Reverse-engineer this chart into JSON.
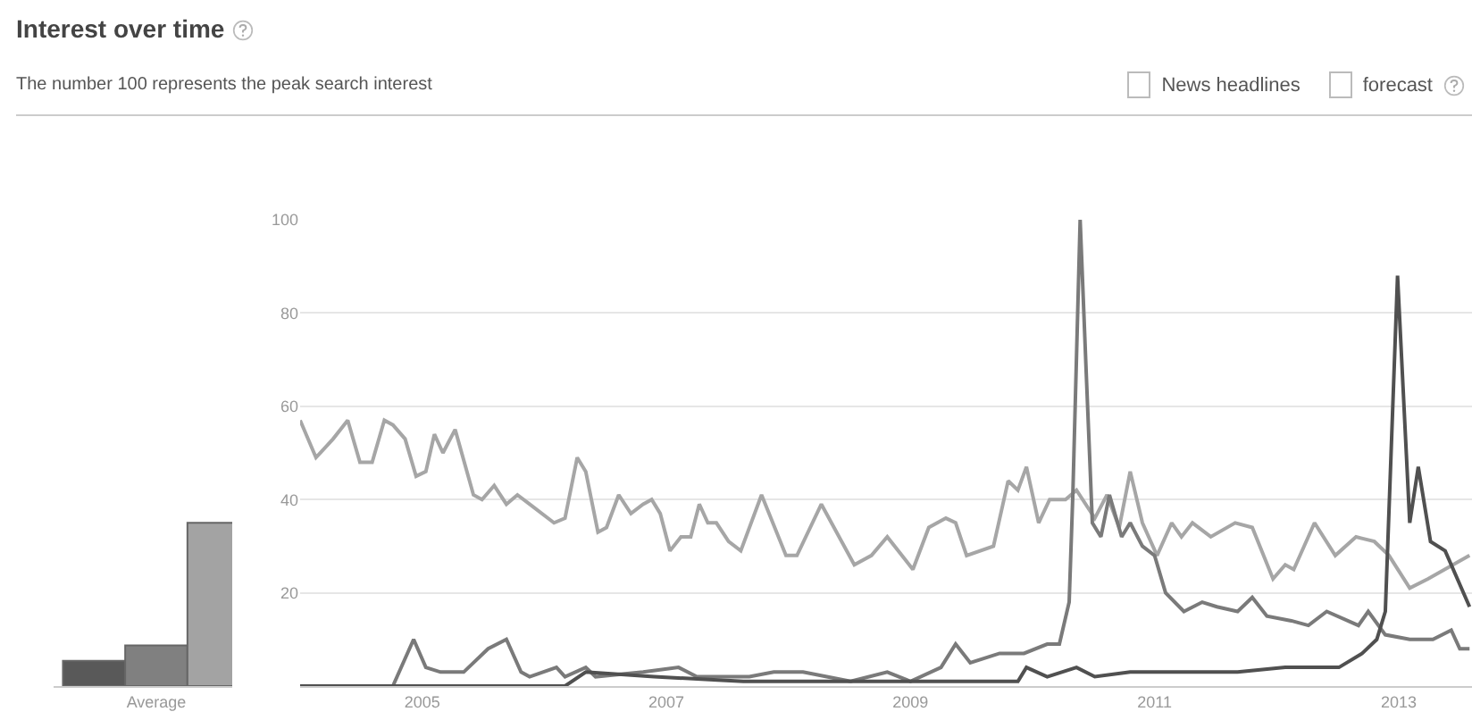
{
  "chart_data": [
    {
      "type": "bar",
      "title": "Interest over time",
      "subtitle": "The number 100 represents the peak search interest",
      "categories": [
        null,
        "Average",
        null
      ],
      "ylim": [
        0,
        100
      ],
      "tick_labels": "x",
      "grid": false,
      "values": [
        5.4,
        8.7,
        35
      ],
      "colors": [
        "#595959",
        "#808080",
        "#a3a3a3"
      ]
    },
    {
      "type": "line",
      "annotations": [
        "News headlines",
        "forecast"
      ],
      "xlim": [
        2004,
        2013.6
      ],
      "xticks": [
        2005,
        2007,
        2009,
        2011,
        2013
      ],
      "ylim": [
        0,
        100
      ],
      "yticks": [
        20,
        40,
        60,
        80,
        100
      ],
      "grid": "y",
      "marker": "none",
      "line_style": "solid",
      "series": [
        {
          "color": "#a6a6a6",
          "x": [
            2004.0,
            2004.13,
            2004.27,
            2004.39,
            2004.49,
            2004.59,
            2004.69,
            2004.76,
            2004.86,
            2004.95,
            2005.03,
            2005.1,
            2005.17,
            2005.27,
            2005.42,
            2005.49,
            2005.59,
            2005.69,
            2005.78,
            2005.88,
            2006.08,
            2006.17,
            2006.27,
            2006.34,
            2006.44,
            2006.51,
            2006.61,
            2006.71,
            2006.81,
            2006.88,
            2006.95,
            2007.03,
            2007.12,
            2007.2,
            2007.27,
            2007.34,
            2007.41,
            2007.51,
            2007.61,
            2007.78,
            2007.98,
            2008.07,
            2008.27,
            2008.54,
            2008.68,
            2008.81,
            2009.02,
            2009.15,
            2009.29,
            2009.37,
            2009.46,
            2009.68,
            2009.8,
            2009.88,
            2009.95,
            2010.05,
            2010.14,
            2010.27,
            2010.36,
            2010.51,
            2010.61,
            2010.71,
            2010.8,
            2010.9,
            2011.02,
            2011.14,
            2011.22,
            2011.31,
            2011.46,
            2011.66,
            2011.8,
            2011.97,
            2012.07,
            2012.14,
            2012.31,
            2012.48,
            2012.65,
            2012.8,
            2012.92,
            2013.09,
            2013.24,
            2013.58
          ],
          "values": [
            57,
            49,
            53,
            57,
            48,
            48,
            57,
            56,
            53,
            45,
            46,
            54,
            50,
            55,
            41,
            40,
            43,
            39,
            41,
            39,
            35,
            36,
            49,
            46,
            33,
            34,
            41,
            37,
            39,
            40,
            37,
            29,
            32,
            32,
            39,
            35,
            35,
            31,
            29,
            41,
            28,
            28,
            39,
            26,
            28,
            32,
            25,
            34,
            36,
            35,
            28,
            30,
            44,
            42,
            47,
            35,
            40,
            40,
            42,
            36,
            41,
            34,
            46,
            35,
            28,
            35,
            32,
            35,
            32,
            35,
            34,
            23,
            26,
            25,
            35,
            28,
            32,
            31,
            28,
            21,
            23,
            28
          ]
        },
        {
          "color": "#7a7a7a",
          "x": [
            2004.0,
            2004.76,
            2004.93,
            2005.03,
            2005.15,
            2005.34,
            2005.54,
            2005.69,
            2005.81,
            2005.88,
            2006.1,
            2006.17,
            2006.34,
            2006.42,
            2006.81,
            2007.1,
            2007.25,
            2007.68,
            2007.88,
            2008.12,
            2008.51,
            2008.81,
            2009.0,
            2009.25,
            2009.37,
            2009.49,
            2009.73,
            2009.93,
            2010.12,
            2010.22,
            2010.3,
            2010.33,
            2010.39,
            2010.44,
            2010.49,
            2010.56,
            2010.63,
            2010.73,
            2010.8,
            2010.9,
            2011.0,
            2011.09,
            2011.24,
            2011.39,
            2011.51,
            2011.68,
            2011.8,
            2011.92,
            2012.12,
            2012.26,
            2012.41,
            2012.67,
            2012.75,
            2012.89,
            2013.09,
            2013.28,
            2013.43,
            2013.5,
            2013.58
          ],
          "values": [
            0,
            0,
            10,
            4,
            3,
            3,
            8,
            10,
            3,
            2,
            4,
            2,
            4,
            2,
            3,
            4,
            2,
            2,
            3,
            3,
            1,
            3,
            1,
            4,
            9,
            5,
            7,
            7,
            9,
            9,
            18,
            41,
            100,
            67,
            35,
            32,
            41,
            32,
            35,
            30,
            28,
            20,
            16,
            18,
            17,
            16,
            19,
            15,
            14,
            13,
            16,
            13,
            16,
            11,
            10,
            10,
            12,
            8,
            8
          ]
        },
        {
          "color": "#505050",
          "x": [
            2004.0,
            2006.17,
            2006.34,
            2006.9,
            2007.63,
            2008.12,
            2008.81,
            2009.0,
            2009.88,
            2009.95,
            2010.12,
            2010.36,
            2010.51,
            2010.8,
            2011.09,
            2011.68,
            2012.07,
            2012.51,
            2012.7,
            2012.82,
            2012.89,
            2012.99,
            2013.09,
            2013.16,
            2013.26,
            2013.38,
            2013.58
          ],
          "values": [
            0,
            0,
            3,
            2,
            1,
            1,
            1,
            1,
            1,
            4,
            2,
            4,
            2,
            3,
            3,
            3,
            4,
            4,
            7,
            10,
            16,
            88,
            35,
            47,
            31,
            29,
            17
          ]
        }
      ]
    }
  ]
}
